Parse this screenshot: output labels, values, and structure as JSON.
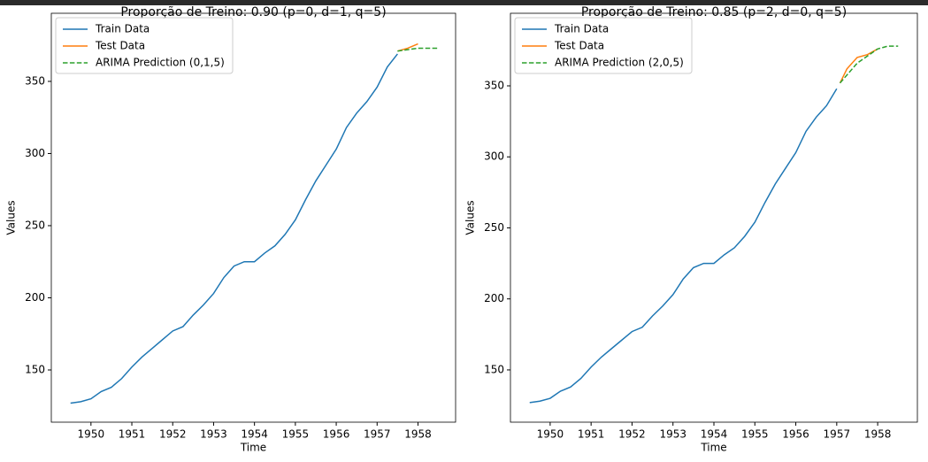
{
  "chart_data": [
    {
      "type": "line",
      "title": "Proporção de Treino: 0.90 (p=0, d=1, q=5)",
      "x_label": "Time",
      "y_label": "Values",
      "xlim": [
        1949.03,
        1958.92
      ],
      "ylim": [
        113.8,
        397.2
      ],
      "xticks": [
        1950,
        1951,
        1952,
        1953,
        1954,
        1955,
        1956,
        1957,
        1958
      ],
      "yticks": [
        150,
        200,
        250,
        300,
        350
      ],
      "legend": "upper left",
      "series": [
        {
          "name": "Train Data",
          "color": "#1f77b4",
          "linestyle": "solid",
          "x": [
            1949.5,
            1949.75,
            1950.0,
            1950.25,
            1950.5,
            1950.75,
            1951.0,
            1951.25,
            1951.5,
            1951.75,
            1952.0,
            1952.25,
            1952.5,
            1952.75,
            1953.0,
            1953.25,
            1953.5,
            1953.75,
            1954.0,
            1954.25,
            1954.5,
            1954.75,
            1955.0,
            1955.25,
            1955.5,
            1955.75,
            1956.0,
            1956.25,
            1956.5,
            1956.75,
            1957.0,
            1957.25,
            1957.5
          ],
          "values": [
            127,
            128,
            130,
            135,
            138,
            144,
            152,
            159,
            165,
            171,
            177,
            180,
            188,
            195,
            203,
            214,
            222,
            225,
            225,
            231,
            236,
            244,
            254,
            268,
            281,
            292,
            303,
            318,
            328,
            336,
            346,
            360,
            369
          ]
        },
        {
          "name": "Test Data",
          "color": "#ff7f0e",
          "linestyle": "solid",
          "x": [
            1957.5,
            1957.75,
            1958.0
          ],
          "values": [
            371,
            373,
            376
          ]
        },
        {
          "name": "ARIMA Prediction (0,1,5)",
          "color": "#2ca02c",
          "linestyle": "dashed",
          "x": [
            1957.5,
            1958.0,
            1958.5
          ],
          "values": [
            371,
            373,
            373
          ]
        }
      ]
    },
    {
      "type": "line",
      "title": "Proporção de Treino: 0.85 (p=2, d=0, q=5)",
      "x_label": "Time",
      "y_label": "Values",
      "xlim": [
        1949.03,
        1958.97
      ],
      "ylim": [
        113.2,
        401.1
      ],
      "xticks": [
        1950,
        1951,
        1952,
        1953,
        1954,
        1955,
        1956,
        1957,
        1958
      ],
      "yticks": [
        150,
        200,
        250,
        300,
        350
      ],
      "legend": "upper left",
      "series": [
        {
          "name": "Train Data",
          "color": "#1f77b4",
          "linestyle": "solid",
          "x": [
            1949.5,
            1949.75,
            1950.0,
            1950.25,
            1950.5,
            1950.75,
            1951.0,
            1951.25,
            1951.5,
            1951.75,
            1952.0,
            1952.25,
            1952.5,
            1952.75,
            1953.0,
            1953.25,
            1953.5,
            1953.75,
            1954.0,
            1954.25,
            1954.5,
            1954.75,
            1955.0,
            1955.25,
            1955.5,
            1955.75,
            1956.0,
            1956.25,
            1956.5,
            1956.75,
            1957.0
          ],
          "values": [
            127,
            128,
            130,
            135,
            138,
            144,
            152,
            159,
            165,
            171,
            177,
            180,
            188,
            195,
            203,
            214,
            222,
            225,
            225,
            231,
            236,
            244,
            254,
            268,
            281,
            292,
            303,
            318,
            328,
            336,
            348
          ]
        },
        {
          "name": "Test Data",
          "color": "#ff7f0e",
          "linestyle": "solid",
          "x": [
            1957.08,
            1957.25,
            1957.5,
            1957.75,
            1958.0
          ],
          "values": [
            352,
            362,
            370,
            372,
            376
          ]
        },
        {
          "name": "ARIMA Prediction (2,0,5)",
          "color": "#2ca02c",
          "linestyle": "dashed",
          "x": [
            1957.08,
            1957.5,
            1958.0,
            1958.25,
            1958.5
          ],
          "values": [
            352,
            366,
            376,
            378,
            378
          ]
        }
      ]
    }
  ]
}
